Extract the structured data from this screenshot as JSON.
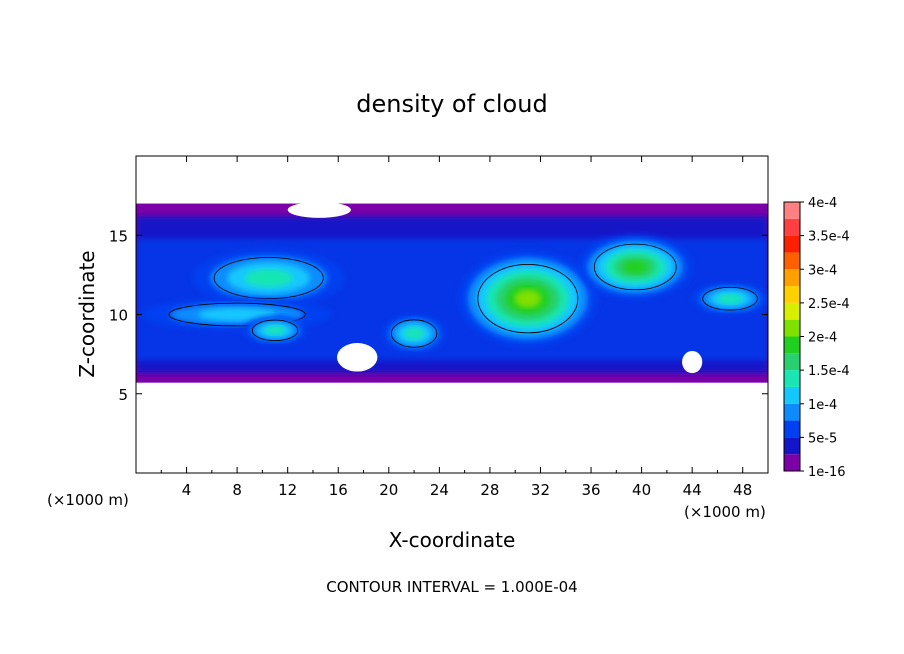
{
  "chart_data": {
    "type": "heatmap",
    "title": "density of cloud",
    "xlabel": "X-coordinate",
    "ylabel": "Z-coordinate",
    "x_unit_left": "(×1000 m)",
    "x_unit_right": "(×1000 m)",
    "xlim": [
      0,
      50
    ],
    "ylim": [
      0,
      20
    ],
    "x_ticks": [
      4,
      8,
      12,
      16,
      20,
      24,
      28,
      32,
      36,
      40,
      44,
      48
    ],
    "y_ticks": [
      5,
      10,
      15
    ],
    "footer": "CONTOUR INTERVAL = 1.000E-04",
    "colorbar": {
      "labels": [
        "1e-16",
        "5e-5",
        "1e-4",
        "1.5e-4",
        "2e-4",
        "2.5e-4",
        "3e-4",
        "3.5e-4",
        "4e-4"
      ],
      "colors": [
        "#7b00a8",
        "#1414c8",
        "#0040f0",
        "#0c8cff",
        "#14c8ff",
        "#18e6b4",
        "#28d070",
        "#20d020",
        "#80e000",
        "#d8f000",
        "#ffd000",
        "#ffa000",
        "#ff6000",
        "#ff2000",
        "#ff4040",
        "#ff8080"
      ]
    },
    "cloud": {
      "base_z": 5.7,
      "top_z": 17.0,
      "features": [
        {
          "kind": "cell",
          "x": 10.5,
          "z": 12.3,
          "rx": 6.0,
          "rz": 1.8,
          "level": 3
        },
        {
          "kind": "cell",
          "x": 8.0,
          "z": 10.0,
          "rx": 7.5,
          "rz": 1.0,
          "level": 2
        },
        {
          "kind": "cell",
          "x": 11.0,
          "z": 9.0,
          "rx": 2.5,
          "rz": 0.9,
          "level": 3
        },
        {
          "kind": "cell",
          "x": 31.0,
          "z": 11.0,
          "rx": 5.5,
          "rz": 3.0,
          "level": 6
        },
        {
          "kind": "cell",
          "x": 39.5,
          "z": 13.0,
          "rx": 4.5,
          "rz": 2.0,
          "level": 5
        },
        {
          "kind": "cell",
          "x": 22.0,
          "z": 8.8,
          "rx": 2.5,
          "rz": 1.2,
          "level": 3
        },
        {
          "kind": "cell",
          "x": 47.0,
          "z": 11.0,
          "rx": 3.0,
          "rz": 1.0,
          "level": 3
        }
      ],
      "clear_gaps": [
        {
          "x": 14.5,
          "z": 16.6,
          "rx": 2.5,
          "rz": 0.5
        },
        {
          "x": 17.5,
          "z": 7.3,
          "rx": 1.6,
          "rz": 0.9
        },
        {
          "x": 44.0,
          "z": 7.0,
          "rx": 0.8,
          "rz": 0.7
        }
      ]
    }
  }
}
